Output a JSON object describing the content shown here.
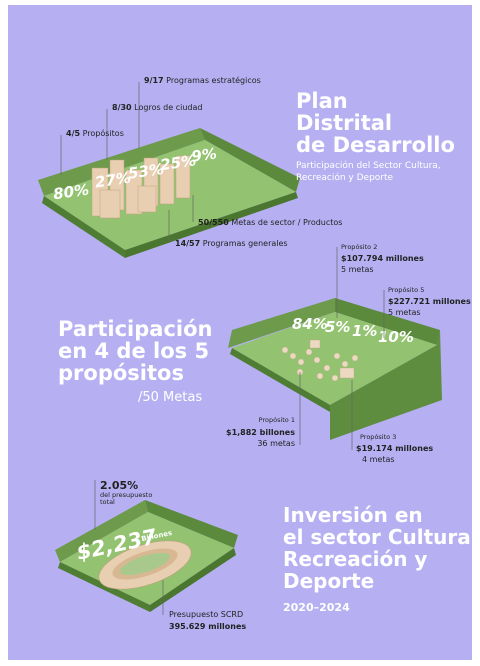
{
  "plan": {
    "title": [
      "Plan",
      "Distrital",
      "de Desarrollo"
    ],
    "subtitle": [
      "Participación del Sector Cultura,",
      "Recreación y Deporte"
    ],
    "stats": [
      {
        "value": "9/17",
        "label": "Programas estratégicos"
      },
      {
        "value": "8/30",
        "label": "Logros de ciudad"
      },
      {
        "value": "4/5",
        "label": "Propósitos"
      },
      {
        "value": "50/550",
        "label": "Metas de sector / Productos"
      },
      {
        "value": "14/57",
        "label": "Programas generales"
      }
    ],
    "percentages": [
      "80%",
      "27%",
      "53%",
      "25%",
      "9%"
    ]
  },
  "participation": {
    "title": [
      "Participación",
      "en 4 de los 5",
      "propósitos"
    ],
    "goals": "/50 Metas",
    "percentages": [
      "84%",
      "5%",
      "1%",
      "10%"
    ],
    "purposes": [
      {
        "name": "Propósito 2",
        "amount": "$107.794 millones",
        "goals": "5 metas"
      },
      {
        "name": "Propósito 5",
        "amount": "$227.721 millones",
        "goals": "5 metas"
      },
      {
        "name": "Propósito 1",
        "amount": "$1,882 billones",
        "goals": "36 metas"
      },
      {
        "name": "Propósito 3",
        "amount": "$19.174 millones",
        "goals": "4 metas"
      }
    ]
  },
  "investment": {
    "share": "2.05%",
    "share_note": [
      "del presupuesto",
      "total"
    ],
    "amount": "$2,237",
    "amount_unit": "Billones",
    "budget_label": "Presupuesto SCRD",
    "budget": "395.629 millones",
    "title": [
      "Inversión en",
      "el sector Cultura",
      "Recreación y",
      "Deporte"
    ],
    "period": "2020–2024"
  }
}
